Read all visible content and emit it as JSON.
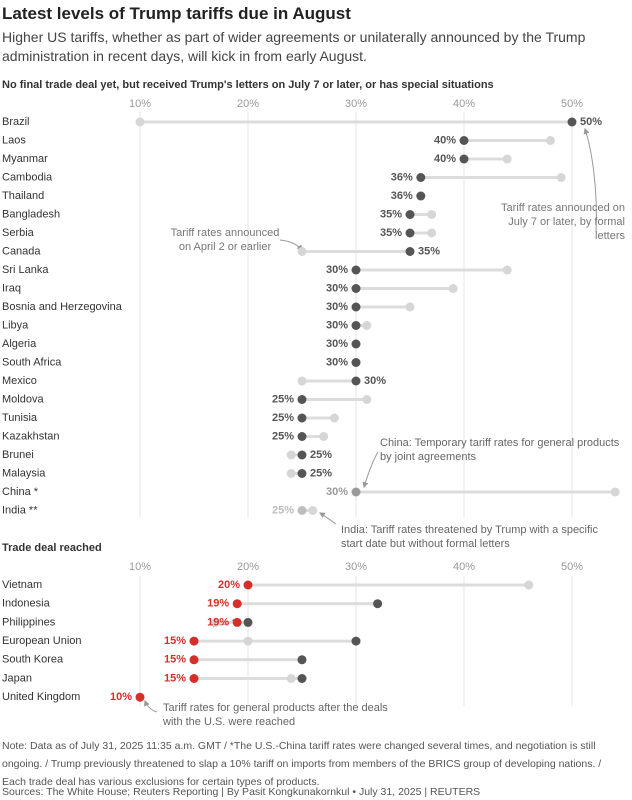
{
  "header": {
    "title": "Latest levels of Trump tariffs due in August",
    "subtitle": "Higher US tariffs, whether as part of wider agreements or unilaterally announced by the Trump administration in recent days, will kick in from early August."
  },
  "chart_data": [
    {
      "type": "dumbbell",
      "title": "No final trade deal yet, but received Trump's letters on July 7 or later, or has special situations",
      "categories": [
        "Brazil",
        "Laos",
        "Myanmar",
        "Cambodia",
        "Thailand",
        "Bangladesh",
        "Serbia",
        "Canada",
        "Sri Lanka",
        "Iraq",
        "Bosnia and Herzegovina",
        "Libya",
        "Algeria",
        "South Africa",
        "Mexico",
        "Moldova",
        "Tunisia",
        "Kazakhstan",
        "Brunei",
        "Malaysia",
        "China *",
        "India **"
      ],
      "series": [
        {
          "color": "#d6d6d6",
          "values": [
            10,
            48,
            44,
            49,
            36,
            37,
            37,
            25,
            44,
            39,
            35,
            31,
            30,
            30,
            25,
            31,
            28,
            27,
            24,
            24,
            54,
            26
          ]
        },
        {
          "color": "#555555",
          "values": [
            50,
            40,
            40,
            36,
            36,
            35,
            35,
            35,
            30,
            30,
            30,
            30,
            30,
            30,
            30,
            25,
            25,
            25,
            25,
            25,
            30,
            25
          ],
          "value_labels": [
            "50%",
            "40%",
            "40%",
            "36%",
            "36%",
            "35%",
            "35%",
            "35%",
            "30%",
            "30%",
            "30%",
            "30%",
            "30%",
            "30%",
            "30%",
            "25%",
            "25%",
            "25%",
            "25%",
            "25%",
            "30%",
            "25%"
          ],
          "point_colors": [
            "#555555",
            "#555555",
            "#555555",
            "#555555",
            "#555555",
            "#555555",
            "#555555",
            "#555555",
            "#555555",
            "#555555",
            "#555555",
            "#555555",
            "#555555",
            "#555555",
            "#555555",
            "#555555",
            "#555555",
            "#555555",
            "#555555",
            "#555555",
            "#9a9a9a",
            "#bdbdbd"
          ]
        }
      ],
      "xlim": [
        10,
        55
      ],
      "xticks": [
        {
          "value": 10,
          "label": "10%"
        },
        {
          "value": 20,
          "label": "20%"
        },
        {
          "value": 30,
          "label": "30%"
        },
        {
          "value": 40,
          "label": "40%"
        },
        {
          "value": 50,
          "label": "50%"
        }
      ],
      "grid": true,
      "annotations": [
        "Tariff rates announced on July 7 or later, by formal letters",
        "Tariff rates announced on April 2 or earlier",
        "China: Temporary tariff rates for general products by joint agreements",
        "India: Tariff rates threatened by Trump with a specific start date but without formal letters"
      ]
    },
    {
      "type": "dumbbell",
      "title": "Trade deal reached",
      "categories": [
        "Vietnam",
        "Indonesia",
        "Philippines",
        "European Union",
        "South Korea",
        "Japan",
        "United Kingdom"
      ],
      "series": [
        {
          "color": "#d6d6d6",
          "values": [
            46,
            null,
            17,
            20,
            null,
            24,
            null
          ]
        },
        {
          "color": "#555555",
          "values": [
            null,
            32,
            20,
            30,
            25,
            25,
            null
          ]
        },
        {
          "color": "#d3302c",
          "values": [
            20,
            19,
            19,
            15,
            15,
            15,
            10
          ],
          "value_labels": [
            "20%",
            "19%",
            "19%",
            "15%",
            "15%",
            "15%",
            "10%"
          ]
        }
      ],
      "xlim": [
        10,
        55
      ],
      "xticks": [
        {
          "value": 10,
          "label": "10%"
        },
        {
          "value": 20,
          "label": "20%"
        },
        {
          "value": 30,
          "label": "30%"
        },
        {
          "value": 40,
          "label": "40%"
        },
        {
          "value": 50,
          "label": "50%"
        }
      ],
      "grid": true,
      "annotations": [
        "Tariff rates for general products after the deals with the U.S. were reached"
      ]
    }
  ],
  "footer": {
    "note": "Note: Data as of July 31, 2025 11:35 a.m. GMT / *The U.S.-China tariff rates were changed several times, and negotiation is still ongoing. / Trump previously threatened to slap a 10% tariff on imports from members of the BRICS group of developing nations. / Each trade deal has various exclusions for certain types of products.",
    "source": "Sources: The White House; Reuters Reporting | By Pasit Kongkunakornkul • July 31, 2025 | REUTERS"
  }
}
